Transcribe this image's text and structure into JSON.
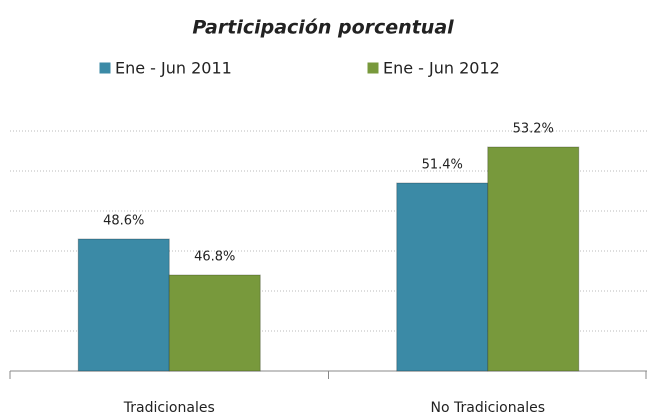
{
  "chart_data": {
    "type": "bar",
    "title": "Participación porcentual",
    "categories": [
      "Tradicionales",
      "No Tradicionales"
    ],
    "series": [
      {
        "name": "Ene - Jun 2011",
        "color": "#3b8aa6",
        "values": [
          48.6,
          51.4
        ],
        "value_labels": [
          "48.6%",
          "51.4%"
        ]
      },
      {
        "name": "Ene - Jun 2012",
        "color": "#78993c",
        "values": [
          46.8,
          53.2
        ],
        "value_labels": [
          "46.8%",
          "53.2%"
        ]
      }
    ],
    "ylim": [
      42,
      54
    ],
    "yticks": [
      44,
      46,
      48,
      50,
      52,
      54
    ],
    "grid": true,
    "legend": "top"
  }
}
